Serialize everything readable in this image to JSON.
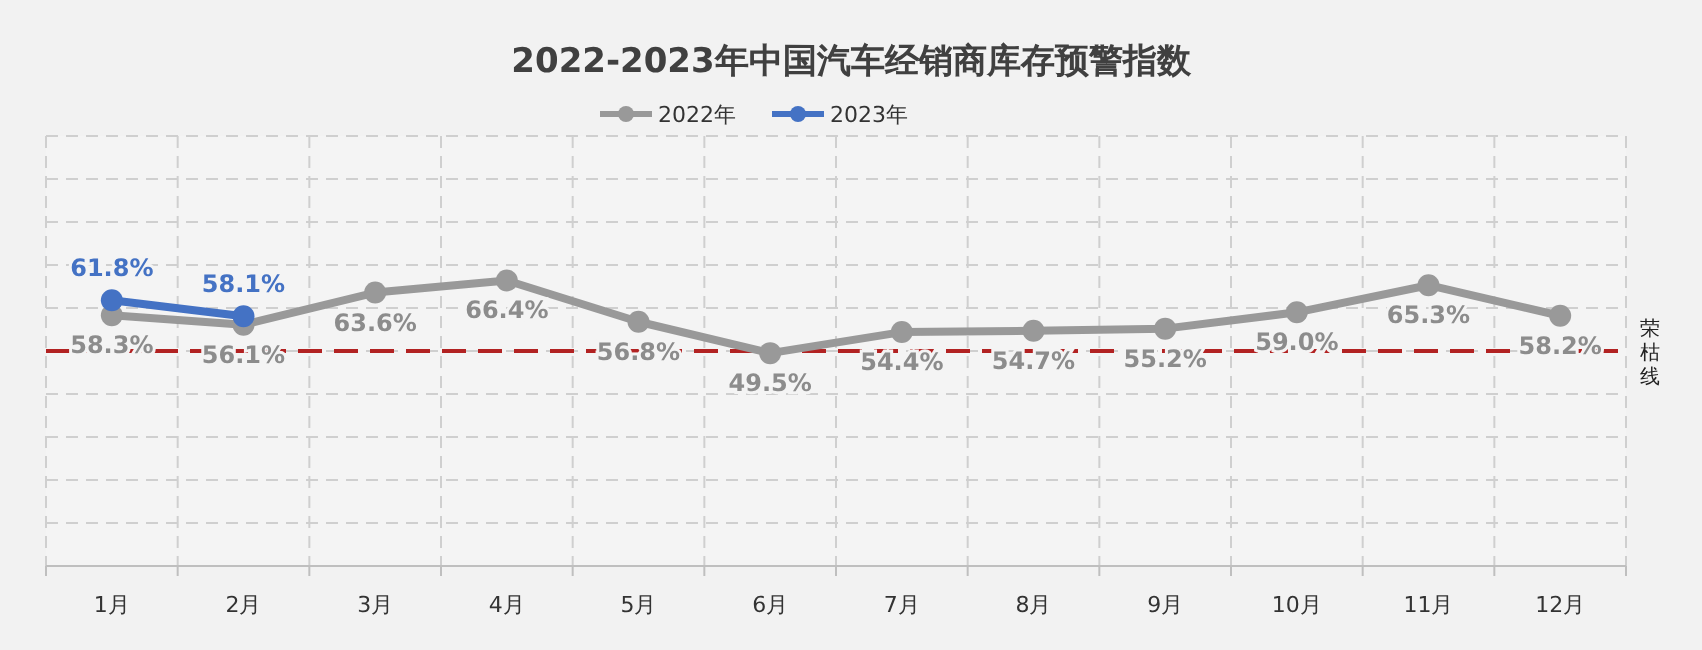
{
  "chart_data": {
    "type": "line",
    "title": "2022-2023年中国汽车经销商库存预警指数",
    "categories": [
      "1月",
      "2月",
      "3月",
      "4月",
      "5月",
      "6月",
      "7月",
      "8月",
      "9月",
      "10月",
      "11月",
      "12月"
    ],
    "series": [
      {
        "name": "2022年",
        "color": "#999999",
        "values": [
          58.3,
          56.1,
          63.6,
          66.4,
          56.8,
          49.5,
          54.4,
          54.7,
          55.2,
          59.0,
          65.3,
          58.2
        ],
        "value_labels": [
          "58.3%",
          "56.1%",
          "63.6%",
          "66.4%",
          "56.8%",
          "49.5%",
          "54.4%",
          "54.7%",
          "55.2%",
          "59.0%",
          "65.3%",
          "58.2%"
        ]
      },
      {
        "name": "2023年",
        "color": "#4472c4",
        "values": [
          61.8,
          58.1,
          null,
          null,
          null,
          null,
          null,
          null,
          null,
          null,
          null,
          null
        ],
        "value_labels": [
          "61.8%",
          "58.1%",
          null,
          null,
          null,
          null,
          null,
          null,
          null,
          null,
          null,
          null
        ]
      }
    ],
    "ylim": [
      0,
      100
    ],
    "yticks": [
      {
        "value": 0,
        "label": null
      },
      {
        "value": 10,
        "label": null
      },
      {
        "value": 20,
        "label": null
      },
      {
        "value": 30,
        "label": null
      },
      {
        "value": 40,
        "label": null
      },
      {
        "value": 50,
        "label": null
      },
      {
        "value": 60,
        "label": null
      },
      {
        "value": 70,
        "label": null
      },
      {
        "value": 80,
        "label": null
      },
      {
        "value": 90,
        "label": null
      },
      {
        "value": 100,
        "label": null
      }
    ],
    "grid": true,
    "legend": "top",
    "marker": "circle",
    "line_style": "solid",
    "ref_lines": [
      {
        "axis": "y",
        "value": 50,
        "label": "荣枯线",
        "color": "#b22222",
        "line_style": "dashed"
      }
    ]
  }
}
